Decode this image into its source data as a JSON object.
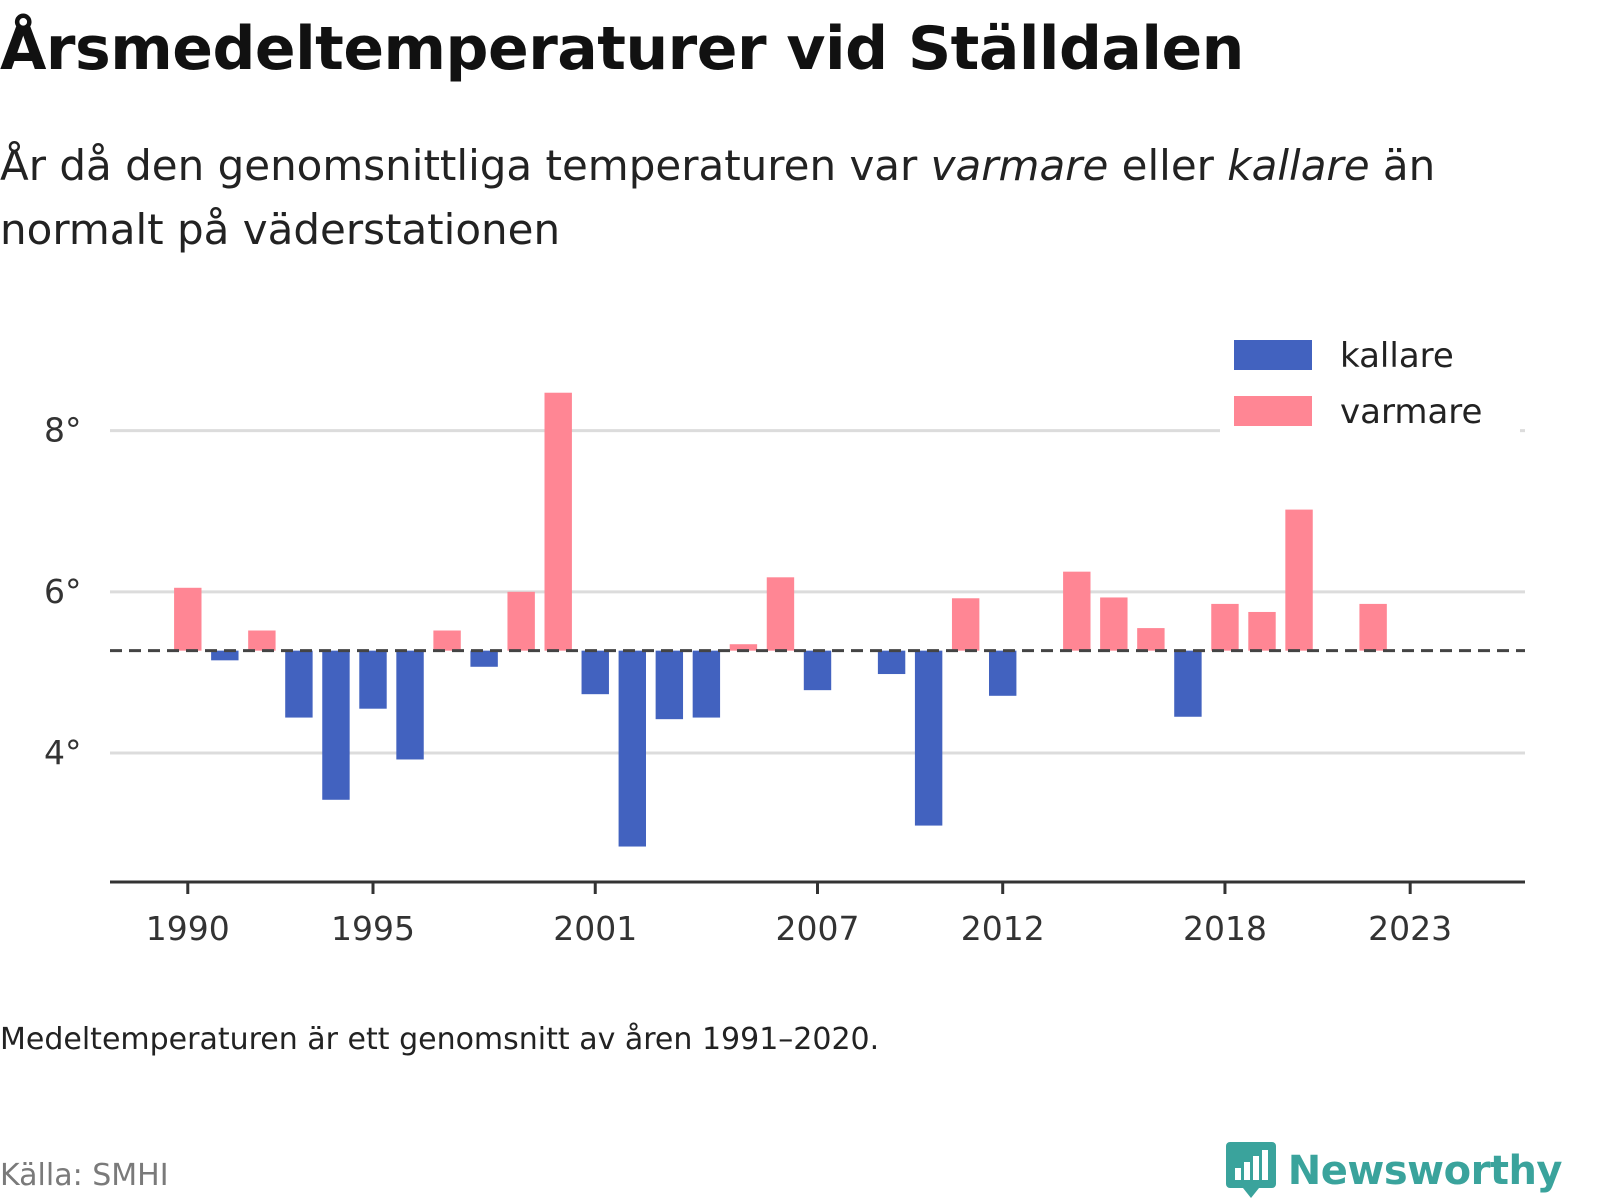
{
  "header": {
    "title": "Årsmedeltemperaturer vid Ställdalen",
    "subtitle_part1": "År då den genomsnittliga temperaturen var ",
    "subtitle_em1": "varmare",
    "subtitle_part2": " eller ",
    "subtitle_em2": "kallare",
    "subtitle_part3": " än normalt på väderstationen"
  },
  "footer": {
    "note": "Medeltemperaturen är ett genomsnitt av åren 1991–2020.",
    "source": "Källa: SMHI",
    "brand": "Newsworthy",
    "brand_icon": "newsworthy-logo-icon"
  },
  "chart_data": {
    "type": "bar",
    "baseline": 5.27,
    "baseline_style": "dashed",
    "ylim": [
      2.4,
      9.0
    ],
    "yticks": [
      4,
      6,
      8
    ],
    "ytick_labels": [
      "4°",
      "6°",
      "8°"
    ],
    "xlim": [
      1987.9,
      2026.1
    ],
    "xticks": [
      1990,
      1995,
      2001,
      2007,
      2012,
      2018,
      2023
    ],
    "xtick_labels": [
      "1990",
      "1995",
      "2001",
      "2007",
      "2012",
      "2018",
      "2023"
    ],
    "grid": "horizontal",
    "legend": {
      "placement": "top-right",
      "entries": [
        {
          "label": "kallare",
          "color": "#4262bf"
        },
        {
          "label": "varmare",
          "color": "#ff8694"
        }
      ]
    },
    "colors": {
      "kallare": "#4262bf",
      "varmare": "#ff8694"
    },
    "x": [
      1990,
      1991,
      1992,
      1993,
      1994,
      1995,
      1996,
      1997,
      1998,
      1999,
      2000,
      2001,
      2002,
      2003,
      2004,
      2005,
      2006,
      2007,
      2009,
      2010,
      2011,
      2012,
      2014,
      2015,
      2016,
      2017,
      2018,
      2019,
      2020,
      2022
    ],
    "values": [
      6.05,
      5.15,
      5.52,
      4.44,
      3.42,
      4.55,
      3.92,
      5.52,
      5.07,
      6.0,
      8.47,
      4.73,
      2.84,
      4.42,
      4.44,
      5.35,
      6.18,
      4.78,
      4.98,
      3.1,
      5.92,
      4.71,
      6.25,
      5.93,
      5.55,
      4.45,
      5.85,
      5.75,
      7.02,
      5.85
    ],
    "title": "Årsmedeltemperaturer vid Ställdalen",
    "xlabel": "",
    "ylabel": ""
  }
}
